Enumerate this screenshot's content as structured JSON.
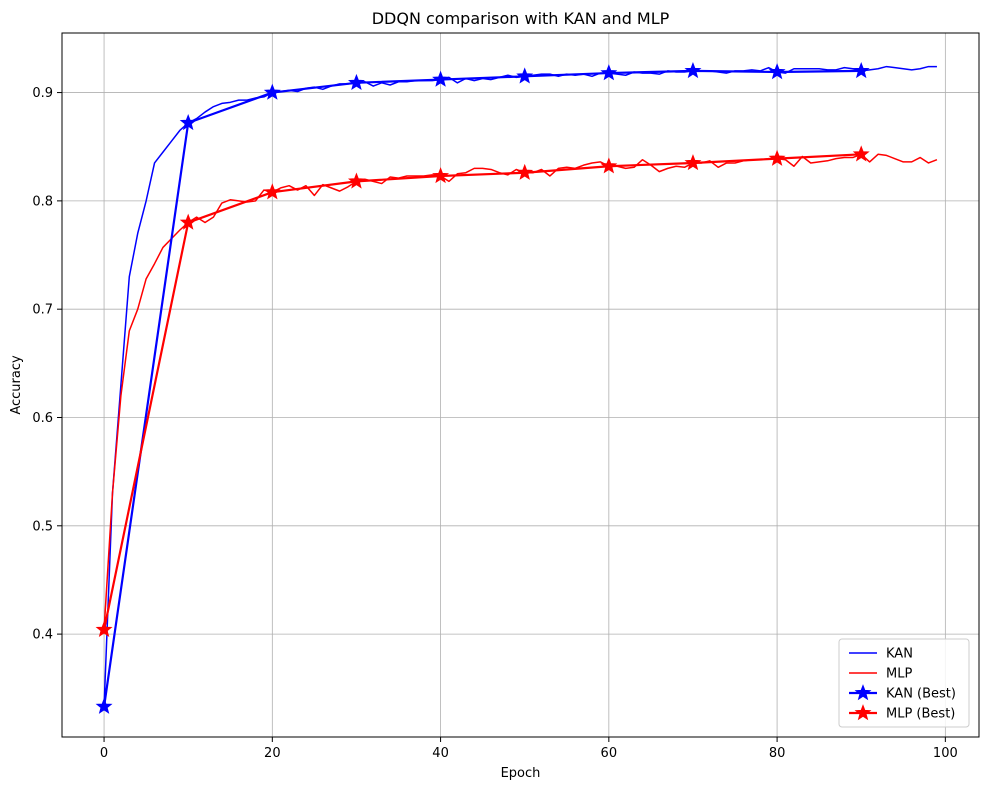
{
  "chart_data": {
    "type": "line",
    "title": "DDQN comparison with KAN and MLP",
    "xlabel": "Epoch",
    "ylabel": "Accuracy",
    "xlim": [
      -5,
      104
    ],
    "ylim": [
      0.305,
      0.955
    ],
    "xticks": [
      0,
      20,
      40,
      60,
      80,
      100
    ],
    "yticks": [
      0.4,
      0.5,
      0.6,
      0.7,
      0.8,
      0.9
    ],
    "grid": true,
    "legend_position": "lower-right",
    "series": [
      {
        "name": "KAN",
        "color": "#0000ff",
        "x": [
          0,
          1,
          2,
          3,
          4,
          5,
          6,
          7,
          8,
          9,
          10,
          11,
          12,
          13,
          14,
          15,
          16,
          17,
          18,
          19,
          20,
          21,
          22,
          23,
          24,
          25,
          26,
          27,
          28,
          29,
          30,
          31,
          32,
          33,
          34,
          35,
          36,
          37,
          38,
          39,
          40,
          41,
          42,
          43,
          44,
          45,
          46,
          47,
          48,
          49,
          50,
          51,
          52,
          53,
          54,
          55,
          56,
          57,
          58,
          59,
          60,
          61,
          62,
          63,
          64,
          65,
          66,
          67,
          68,
          69,
          70,
          71,
          72,
          73,
          74,
          75,
          76,
          77,
          78,
          79,
          80,
          81,
          82,
          83,
          84,
          85,
          86,
          87,
          88,
          89,
          90,
          91,
          92,
          93,
          94,
          95,
          96,
          97,
          98,
          99
        ],
        "y": [
          0.333,
          0.53,
          0.63,
          0.73,
          0.77,
          0.8,
          0.835,
          0.845,
          0.855,
          0.865,
          0.872,
          0.876,
          0.882,
          0.887,
          0.89,
          0.891,
          0.893,
          0.893,
          0.895,
          0.896,
          0.9,
          0.901,
          0.902,
          0.901,
          0.904,
          0.905,
          0.903,
          0.906,
          0.908,
          0.908,
          0.909,
          0.91,
          0.906,
          0.909,
          0.907,
          0.91,
          0.91,
          0.911,
          0.911,
          0.911,
          0.912,
          0.914,
          0.909,
          0.913,
          0.911,
          0.913,
          0.912,
          0.914,
          0.916,
          0.914,
          0.915,
          0.916,
          0.917,
          0.917,
          0.915,
          0.917,
          0.916,
          0.917,
          0.915,
          0.918,
          0.918,
          0.917,
          0.916,
          0.919,
          0.918,
          0.918,
          0.917,
          0.92,
          0.919,
          0.919,
          0.92,
          0.92,
          0.92,
          0.919,
          0.918,
          0.92,
          0.92,
          0.921,
          0.92,
          0.923,
          0.919,
          0.918,
          0.922,
          0.922,
          0.922,
          0.922,
          0.921,
          0.921,
          0.923,
          0.922,
          0.92,
          0.921,
          0.922,
          0.924,
          0.923,
          0.922,
          0.921,
          0.922,
          0.924,
          0.924
        ]
      },
      {
        "name": "MLP",
        "color": "#ff0000",
        "x": [
          0,
          1,
          2,
          3,
          4,
          5,
          6,
          7,
          8,
          9,
          10,
          11,
          12,
          13,
          14,
          15,
          16,
          17,
          18,
          19,
          20,
          21,
          22,
          23,
          24,
          25,
          26,
          27,
          28,
          29,
          30,
          31,
          32,
          33,
          34,
          35,
          36,
          37,
          38,
          39,
          40,
          41,
          42,
          43,
          44,
          45,
          46,
          47,
          48,
          49,
          50,
          51,
          52,
          53,
          54,
          55,
          56,
          57,
          58,
          59,
          60,
          61,
          62,
          63,
          64,
          65,
          66,
          67,
          68,
          69,
          70,
          71,
          72,
          73,
          74,
          75,
          76,
          77,
          78,
          79,
          80,
          81,
          82,
          83,
          84,
          85,
          86,
          87,
          88,
          89,
          90,
          91,
          92,
          93,
          94,
          95,
          96,
          97,
          98,
          99
        ],
        "y": [
          0.404,
          0.53,
          0.62,
          0.68,
          0.7,
          0.728,
          0.742,
          0.757,
          0.765,
          0.773,
          0.78,
          0.785,
          0.78,
          0.785,
          0.798,
          0.801,
          0.8,
          0.799,
          0.8,
          0.81,
          0.808,
          0.812,
          0.814,
          0.81,
          0.814,
          0.805,
          0.815,
          0.812,
          0.809,
          0.813,
          0.818,
          0.82,
          0.818,
          0.816,
          0.822,
          0.821,
          0.823,
          0.823,
          0.823,
          0.824,
          0.823,
          0.818,
          0.825,
          0.826,
          0.83,
          0.83,
          0.829,
          0.826,
          0.824,
          0.829,
          0.826,
          0.826,
          0.829,
          0.823,
          0.83,
          0.831,
          0.83,
          0.833,
          0.835,
          0.836,
          0.832,
          0.832,
          0.83,
          0.831,
          0.838,
          0.833,
          0.827,
          0.83,
          0.832,
          0.831,
          0.835,
          0.835,
          0.837,
          0.831,
          0.835,
          0.835,
          0.837,
          0.838,
          0.838,
          0.839,
          0.839,
          0.838,
          0.832,
          0.841,
          0.835,
          0.836,
          0.837,
          0.839,
          0.84,
          0.84,
          0.843,
          0.836,
          0.843,
          0.842,
          0.839,
          0.836,
          0.836,
          0.84,
          0.835,
          0.838
        ]
      },
      {
        "name": "KAN (Best)",
        "color": "#0000ff",
        "marker": "star",
        "x": [
          0,
          10,
          20,
          30,
          40,
          50,
          60,
          70,
          80,
          90
        ],
        "y": [
          0.333,
          0.872,
          0.9,
          0.909,
          0.912,
          0.915,
          0.918,
          0.92,
          0.919,
          0.92
        ]
      },
      {
        "name": "MLP (Best)",
        "color": "#ff0000",
        "marker": "star",
        "x": [
          0,
          10,
          20,
          30,
          40,
          50,
          60,
          70,
          80,
          90
        ],
        "y": [
          0.404,
          0.78,
          0.808,
          0.818,
          0.823,
          0.826,
          0.832,
          0.835,
          0.839,
          0.843
        ]
      }
    ]
  }
}
